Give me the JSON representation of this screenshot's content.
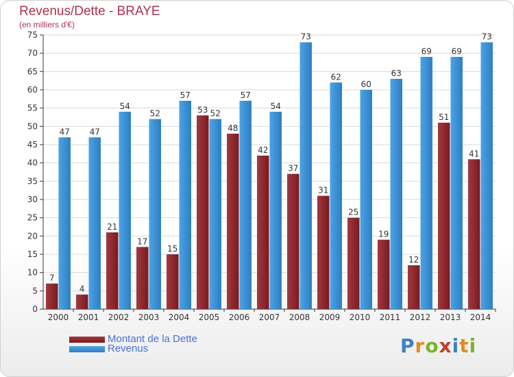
{
  "header": {
    "title": "Revenus/Dette - BRAYE",
    "subtitle": "(en milliers d'€)"
  },
  "legend": {
    "dette_label": "Montant de la Dette",
    "revenus_label": "Revenus"
  },
  "logo": {
    "text": "Proxiti"
  },
  "colors": {
    "dette": "#7a1a1f",
    "dette_light": "#a03a3f",
    "revenus": "#4aa3e6",
    "revenus_dark": "#2f7fc0",
    "grid": "#d9d9d9",
    "axis": "#333333"
  },
  "chart_data": {
    "type": "bar",
    "title": "Revenus/Dette - BRAYE",
    "subtitle": "(en milliers d'€)",
    "categories": [
      "2000",
      "2001",
      "2002",
      "2003",
      "2004",
      "2005",
      "2006",
      "2007",
      "2008",
      "2009",
      "2010",
      "2011",
      "2012",
      "2013",
      "2014"
    ],
    "series": [
      {
        "name": "Montant de la Dette",
        "values": [
          7,
          4,
          21,
          17,
          15,
          53,
          48,
          42,
          37,
          31,
          25,
          19,
          12,
          51,
          41
        ]
      },
      {
        "name": "Revenus",
        "values": [
          47,
          47,
          54,
          52,
          57,
          52,
          57,
          54,
          73,
          62,
          60,
          63,
          69,
          69,
          73
        ]
      }
    ],
    "ylim": [
      0,
      75
    ],
    "yticks": [
      0,
      5,
      10,
      15,
      20,
      25,
      30,
      35,
      40,
      45,
      50,
      55,
      60,
      65,
      70,
      75
    ],
    "grid": true,
    "legend_position": "bottom-left"
  }
}
